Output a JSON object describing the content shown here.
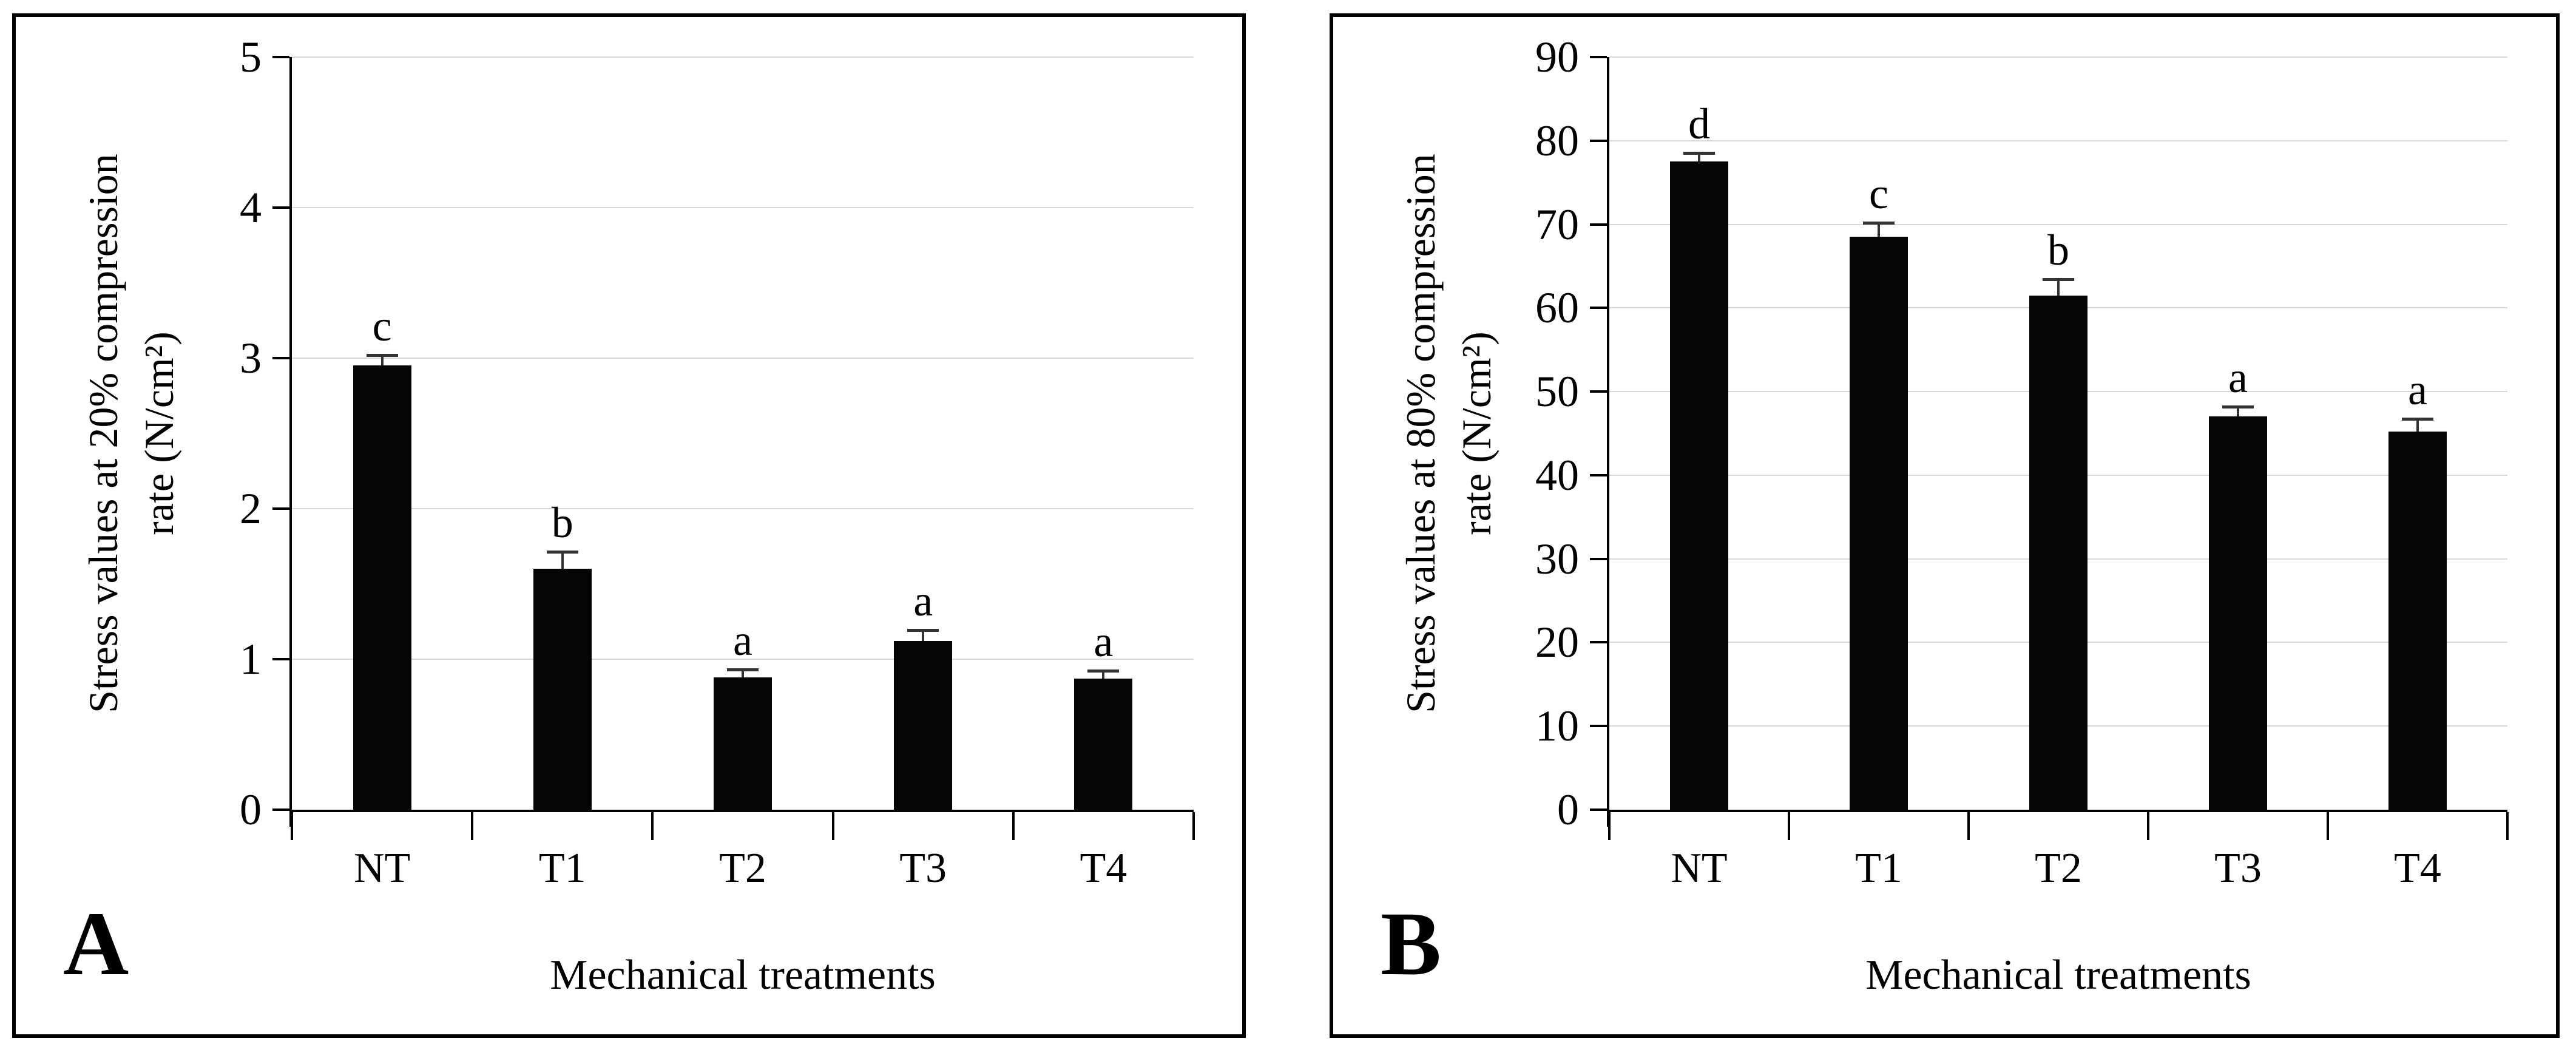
{
  "chart_data": [
    {
      "type": "bar",
      "panel_label": "A",
      "ylabel": "Stress values at 20% compression rate (N/cm²)",
      "ylabel_line1": "Stress values at 20% compression",
      "ylabel_line2": "rate (N/cm²)",
      "xlabel": "Mechanical treatments",
      "categories": [
        "NT",
        "T1",
        "T2",
        "T3",
        "T4"
      ],
      "values": [
        2.95,
        1.6,
        0.88,
        1.12,
        0.87
      ],
      "errors": [
        0.06,
        0.1,
        0.04,
        0.06,
        0.04
      ],
      "sig_letters": [
        "c",
        "b",
        "a",
        "a",
        "a"
      ],
      "ylim": [
        0,
        5
      ],
      "ytick_step": 1,
      "yticks": [
        0,
        1,
        2,
        3,
        4,
        5
      ],
      "grid": true,
      "legend": false,
      "bar_color": "#050505",
      "gridline_color": "#d9d9d9"
    },
    {
      "type": "bar",
      "panel_label": "B",
      "ylabel": "Stress values at 80% compression rate (N/cm²)",
      "ylabel_line1": "Stress values at 80% compression",
      "ylabel_line2": "rate (N/cm²)",
      "xlabel": "Mechanical treatments",
      "categories": [
        "NT",
        "T1",
        "T2",
        "T3",
        "T4"
      ],
      "values": [
        77.5,
        68.5,
        61.5,
        47,
        45.2
      ],
      "errors": [
        0.8,
        1.5,
        1.7,
        1.0,
        1.3
      ],
      "sig_letters": [
        "d",
        "c",
        "b",
        "a",
        "a"
      ],
      "ylim": [
        0,
        90
      ],
      "ytick_step": 10,
      "yticks": [
        0,
        10,
        20,
        30,
        40,
        50,
        60,
        70,
        80,
        90
      ],
      "grid": true,
      "legend": false,
      "bar_color": "#050505",
      "gridline_color": "#d9d9d9"
    }
  ]
}
